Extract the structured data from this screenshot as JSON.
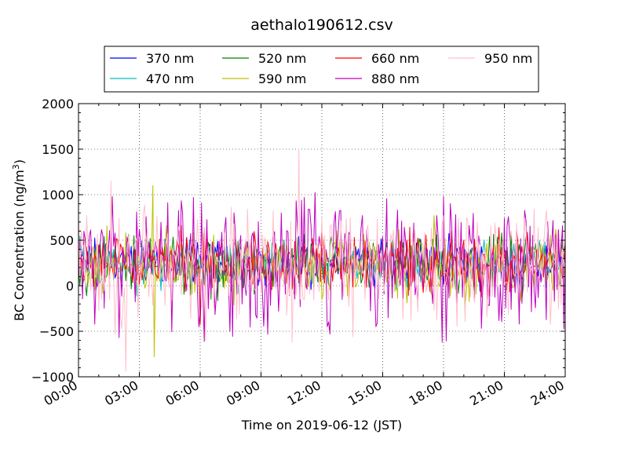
{
  "chart_data": {
    "type": "line",
    "title": "aethalo190612.csv",
    "xlabel": "Time on 2019-06-12 (JST)",
    "ylabel": "BC Concentration (ng/m³)",
    "ylabel_main": "BC Concentration (ng/m",
    "ylabel_sup": "3",
    "ylabel_tail": ")",
    "xlim": [
      "00:00",
      "24:00"
    ],
    "ylim": [
      -1000,
      2000
    ],
    "grid": true,
    "legend_placement": "top-center",
    "xticks": [
      "00:00",
      "03:00",
      "06:00",
      "09:00",
      "12:00",
      "15:00",
      "18:00",
      "21:00",
      "24:00"
    ],
    "yticks": [
      "−1000",
      "−500",
      "0",
      "500",
      "1000",
      "1500",
      "2000"
    ],
    "series": [
      {
        "name": "370 nm",
        "color": "#0000ff",
        "base": 250,
        "amp": 120,
        "peaks": [
          [
            "00:05",
            450
          ],
          [
            "02:10",
            380
          ],
          [
            "06:30",
            420
          ],
          [
            "11:15",
            410
          ],
          [
            "16:40",
            470
          ],
          [
            "18:20",
            430
          ],
          [
            "23:40",
            460
          ]
        ]
      },
      {
        "name": "470 nm",
        "color": "#00bfbf",
        "base": 240,
        "amp": 130,
        "peaks": [
          [
            "01:45",
            400
          ],
          [
            "07:10",
            430
          ],
          [
            "13:30",
            380
          ],
          [
            "19:30",
            420
          ]
        ]
      },
      {
        "name": "520 nm",
        "color": "#008000",
        "base": 230,
        "amp": 150,
        "peaks": [
          [
            "03:30",
            520
          ],
          [
            "08:00",
            430
          ],
          [
            "14:30",
            470
          ],
          [
            "17:40",
            560
          ],
          [
            "20:50",
            580
          ],
          [
            "22:30",
            460
          ]
        ]
      },
      {
        "name": "590 nm",
        "color": "#bfbf00",
        "base": 220,
        "amp": 170,
        "peaks": [
          [
            "00:15",
            480
          ],
          [
            "03:40",
            1100
          ],
          [
            "03:45",
            -780
          ],
          [
            "04:20",
            660
          ],
          [
            "12:45",
            600
          ],
          [
            "17:30",
            770
          ],
          [
            "23:30",
            620
          ],
          [
            "23:40",
            0
          ]
        ]
      },
      {
        "name": "660 nm",
        "color": "#ff0000",
        "base": 250,
        "amp": 160,
        "peaks": [
          [
            "01:10",
            470
          ],
          [
            "06:00",
            -430
          ],
          [
            "06:20",
            600
          ],
          [
            "11:30",
            520
          ],
          [
            "15:50",
            490
          ],
          [
            "18:45",
            520
          ],
          [
            "21:40",
            480
          ]
        ]
      },
      {
        "name": "880 nm",
        "color": "#bf00bf",
        "base": 240,
        "amp": 320,
        "peaks": [
          [
            "01:40",
            980
          ],
          [
            "02:00",
            -570
          ],
          [
            "02:50",
            810
          ],
          [
            "05:40",
            970
          ],
          [
            "05:55",
            -450
          ],
          [
            "07:40",
            800
          ],
          [
            "10:00",
            800
          ],
          [
            "11:00",
            940
          ],
          [
            "12:15",
            -450
          ],
          [
            "14:40",
            -450
          ],
          [
            "15:45",
            830
          ],
          [
            "16:30",
            690
          ],
          [
            "17:40",
            770
          ],
          [
            "17:55",
            -620
          ],
          [
            "18:00",
            980
          ],
          [
            "21:00",
            740
          ],
          [
            "21:45",
            -420
          ],
          [
            "23:50",
            660
          ]
        ]
      },
      {
        "name": "950 nm",
        "color": "#ffc0cb",
        "base": 220,
        "amp": 290,
        "peaks": [
          [
            "01:35",
            1150
          ],
          [
            "02:20",
            -940
          ],
          [
            "03:10",
            800
          ],
          [
            "04:55",
            650
          ],
          [
            "06:15",
            -600
          ],
          [
            "07:10",
            580
          ],
          [
            "09:05",
            560
          ],
          [
            "10:30",
            -620
          ],
          [
            "10:50",
            1500
          ],
          [
            "13:30",
            -560
          ],
          [
            "18:00",
            770
          ],
          [
            "19:40",
            700
          ],
          [
            "22:00",
            740
          ],
          [
            "22:40",
            640
          ],
          [
            "23:50",
            400
          ]
        ]
      }
    ]
  }
}
